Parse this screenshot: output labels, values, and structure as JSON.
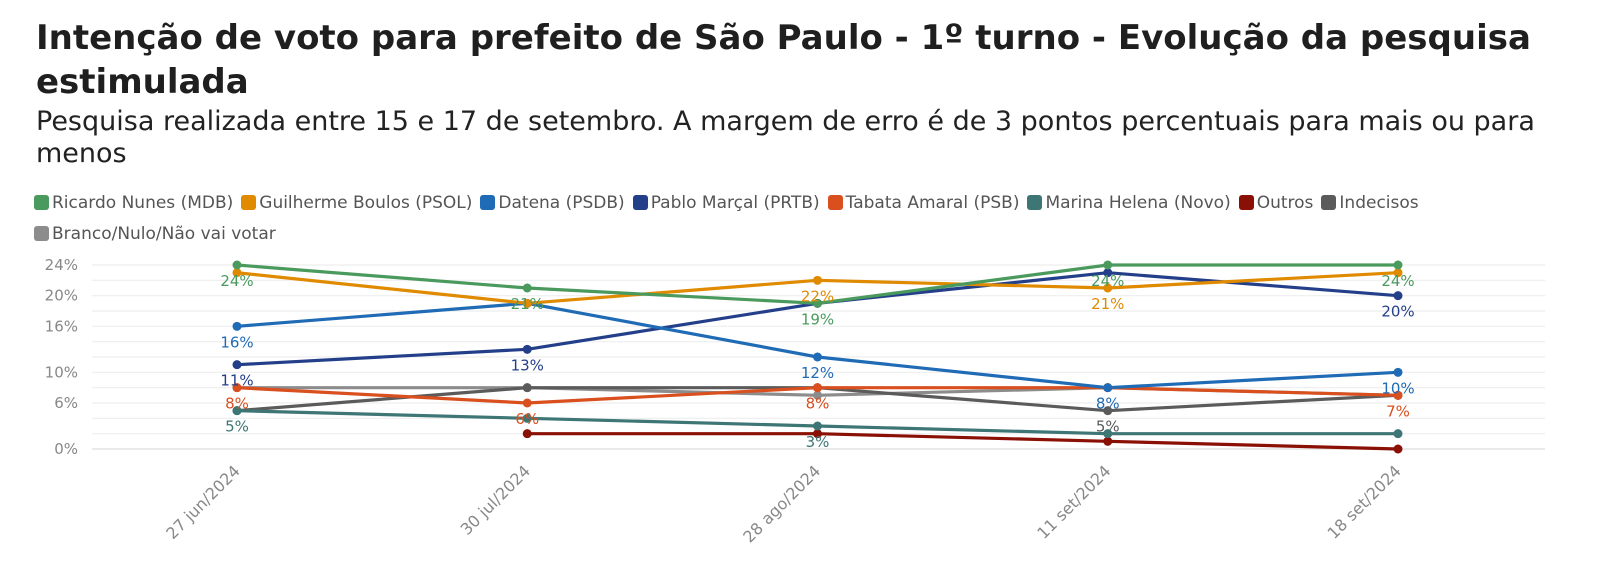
{
  "title": "Intenção de voto para prefeito de São Paulo - 1º turno - Evolução da pesquisa estimulada",
  "subtitle": "Pesquisa realizada entre 15 e 17 de setembro. A margem de erro é de 3 pontos percentuais para mais ou para menos",
  "chart_data": {
    "type": "line",
    "title": "Intenção de voto para prefeito de São Paulo - 1º turno - Evolução da pesquisa estimulada",
    "subtitle": "Pesquisa realizada entre 15 e 17 de setembro. A margem de erro é de 3 pontos percentuais para mais ou para menos",
    "xlabel": "",
    "ylabel": "",
    "categories": [
      "27 jun/2024",
      "30 jul/2024",
      "28 ago/2024",
      "11 set/2024",
      "18 set/2024"
    ],
    "ylim": [
      0,
      25
    ],
    "yticks": [
      0,
      6,
      10,
      16,
      20,
      24
    ],
    "ytick_labels": [
      "0%",
      "6%",
      "10%",
      "16%",
      "20%",
      "24%"
    ],
    "grid": true,
    "legend_position": "top-left",
    "series": [
      {
        "name": "Ricardo Nunes (MDB)",
        "color": "#4a9a5e",
        "values": [
          24,
          21,
          19,
          24,
          24
        ],
        "labels": [
          "24%",
          "21%",
          "19%",
          "24%",
          "24%"
        ]
      },
      {
        "name": "Guilherme Boulos (PSOL)",
        "color": "#e08a00",
        "values": [
          23,
          19,
          22,
          21,
          23
        ],
        "labels": [
          "",
          "",
          "22%",
          "21%",
          ""
        ]
      },
      {
        "name": "Datena (PSDB)",
        "color": "#1f6bb5",
        "values": [
          16,
          19,
          12,
          8,
          10
        ],
        "labels": [
          "16%",
          "",
          "12%",
          "8%",
          "10%"
        ]
      },
      {
        "name": "Pablo Marçal (PRTB)",
        "color": "#243f8a",
        "values": [
          11,
          13,
          19,
          23,
          20
        ],
        "labels": [
          "11%",
          "13%",
          "",
          "",
          "20%"
        ]
      },
      {
        "name": "Tabata Amaral (PSB)",
        "color": "#d94f1e",
        "values": [
          8,
          6,
          8,
          8,
          7
        ],
        "labels": [
          "8%",
          "6%",
          "8%",
          "",
          "7%"
        ]
      },
      {
        "name": "Marina Helena (Novo)",
        "color": "#3e7575",
        "values": [
          5,
          4,
          3,
          2,
          2
        ],
        "labels": [
          "5%",
          "",
          "3%",
          "",
          ""
        ]
      },
      {
        "name": "Outros",
        "color": "#8a1005",
        "values": [
          null,
          2,
          2,
          1,
          0
        ],
        "labels": [
          "",
          "",
          "",
          "",
          ""
        ]
      },
      {
        "name": "Indecisos",
        "color": "#5b5b5b",
        "values": [
          5,
          8,
          8,
          5,
          7
        ],
        "labels": [
          "",
          "",
          "",
          "5%",
          ""
        ]
      },
      {
        "name": "Branco/Nulo/Não vai votar",
        "color": "#8c8c8c",
        "values": [
          8,
          8,
          7,
          8,
          7
        ],
        "labels": [
          "",
          "",
          "",
          "",
          ""
        ]
      }
    ]
  }
}
